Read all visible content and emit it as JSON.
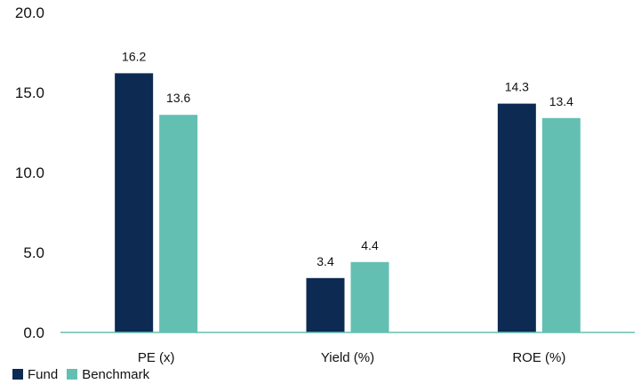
{
  "chart_data": {
    "type": "bar",
    "categories": [
      "PE (x)",
      "Yield (%)",
      "ROE (%)"
    ],
    "series": [
      {
        "name": "Fund",
        "values": [
          16.2,
          3.4,
          14.3
        ],
        "color": "#0c2a52"
      },
      {
        "name": "Benchmark",
        "values": [
          13.6,
          4.4,
          13.4
        ],
        "color": "#63bfb2"
      }
    ],
    "ylim": [
      0,
      20
    ],
    "yticks": [
      "0.0",
      "5.0",
      "10.0",
      "15.0",
      "20.0"
    ],
    "grid": false,
    "legend_position": "bottom-left",
    "axis_color": "#63bfb2"
  }
}
